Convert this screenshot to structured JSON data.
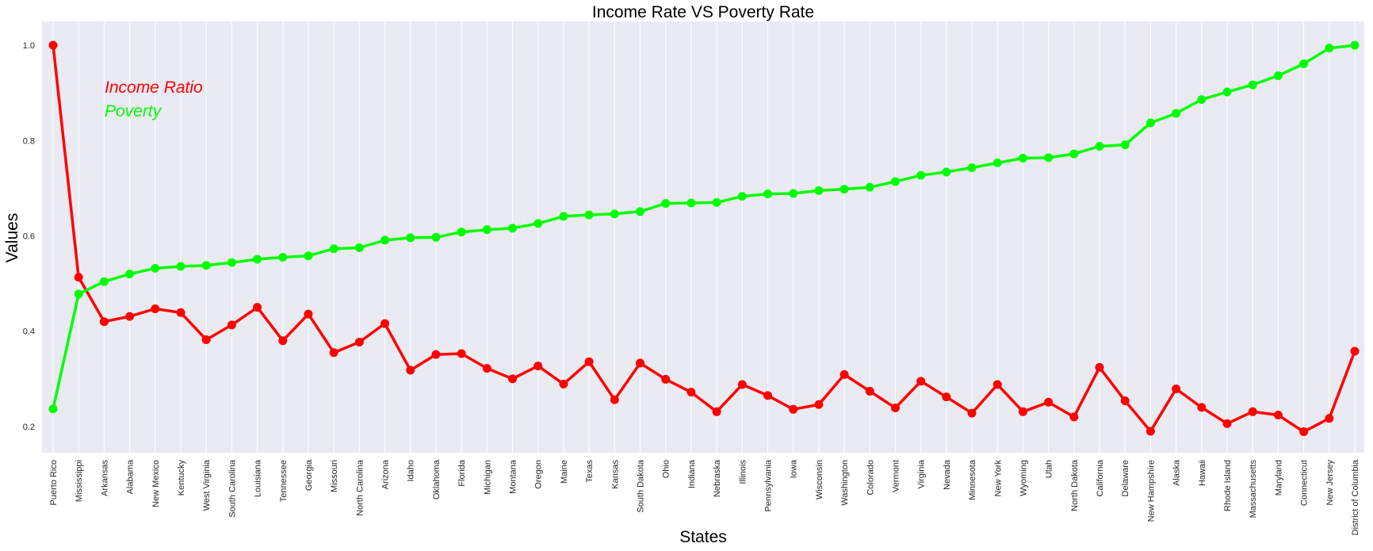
{
  "chart_data": {
    "type": "line",
    "title": "Income Rate  VS  Poverty Rate",
    "xlabel": "States",
    "ylabel": "Values",
    "ylim": [
      0.145,
      1.05
    ],
    "yticks": [
      "0.2",
      "0.4",
      "0.6",
      "0.8",
      "1.0"
    ],
    "grid": true,
    "legend_position": "top-left",
    "categories": [
      "Puerto Rico",
      "Mississippi",
      "Arkansas",
      "Alabama",
      "New Mexico",
      "Kentucky",
      "West Virginia",
      "South Carolina",
      "Louisiana",
      "Tennessee",
      "Georgia",
      "Missouri",
      "North Carolina",
      "Arizona",
      "Idaho",
      "Oklahoma",
      "Florida",
      "Michigan",
      "Montana",
      "Oregon",
      "Maine",
      "Texas",
      "Kansas",
      "South Dakota",
      "Ohio",
      "Indiana",
      "Nebraska",
      "Illinois",
      "Pennsylvania",
      "Iowa",
      "Wisconsin",
      "Washington",
      "Colorado",
      "Vermont",
      "Virginia",
      "Nevada",
      "Minnesota",
      "New York",
      "Wyoming",
      "Utah",
      "North Dakota",
      "California",
      "Delaware",
      "New Hampshire",
      "Alaska",
      "Hawaii",
      "Rhode Island",
      "Massachusetts",
      "Maryland",
      "Connecticut",
      "New Jersey",
      "District of Columbia"
    ],
    "series": [
      {
        "name": "Income Ratio",
        "color": "#ff0000",
        "values": [
          1.0,
          0.513,
          0.42,
          0.431,
          0.447,
          0.439,
          0.382,
          0.413,
          0.45,
          0.38,
          0.436,
          0.355,
          0.377,
          0.416,
          0.318,
          0.351,
          0.353,
          0.322,
          0.3,
          0.327,
          0.289,
          0.336,
          0.256,
          0.333,
          0.299,
          0.272,
          0.231,
          0.288,
          0.265,
          0.236,
          0.246,
          0.309,
          0.274,
          0.239,
          0.295,
          0.262,
          0.228,
          0.288,
          0.231,
          0.251,
          0.22,
          0.324,
          0.254,
          0.19,
          0.279,
          0.24,
          0.206,
          0.231,
          0.224,
          0.189,
          0.217,
          0.358
        ]
      },
      {
        "name": "Poverty",
        "color": "#00ff00",
        "values": [
          0.237,
          0.478,
          0.504,
          0.52,
          0.532,
          0.536,
          0.538,
          0.544,
          0.551,
          0.555,
          0.558,
          0.573,
          0.575,
          0.591,
          0.596,
          0.597,
          0.608,
          0.613,
          0.616,
          0.626,
          0.641,
          0.644,
          0.646,
          0.651,
          0.668,
          0.669,
          0.67,
          0.683,
          0.688,
          0.689,
          0.695,
          0.698,
          0.702,
          0.714,
          0.727,
          0.734,
          0.743,
          0.753,
          0.763,
          0.764,
          0.772,
          0.788,
          0.791,
          0.837,
          0.857,
          0.886,
          0.902,
          0.917,
          0.936,
          0.961,
          0.994,
          1.0
        ]
      }
    ]
  }
}
